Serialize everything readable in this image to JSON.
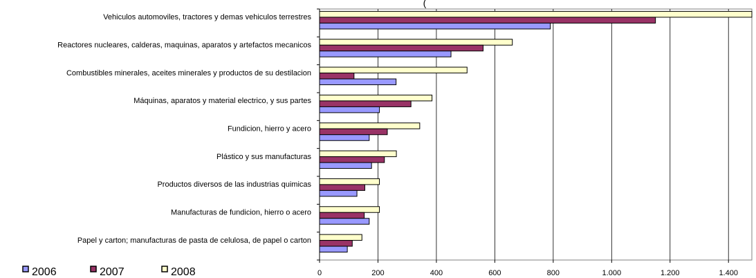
{
  "chart_data": {
    "type": "bar",
    "orientation": "horizontal",
    "title_partial": "(",
    "categories": [
      "Vehiculos automoviles, tractores y demas vehiculos terrestres",
      "Reactores nucleares, calderas, maquinas, aparatos y artefactos mecanicos",
      "Combustibles minerales, aceites minerales y productos de su destilacion",
      "Máquinas, aparatos y material electrico, y sus partes",
      "Fundicion, hierro y acero",
      "Plástico y sus manufacturas",
      "Productos diversos de las industrias quimicas",
      "Manufacturas de fundicion, hierro o acero",
      "Papel y carton; manufacturas de pasta de celulosa, de papel o carton"
    ],
    "series": [
      {
        "name": "2006",
        "color": "#9999ff",
        "values": [
          790,
          450,
          262,
          205,
          170,
          178,
          128,
          170,
          95
        ]
      },
      {
        "name": "2007",
        "color": "#993366",
        "values": [
          1150,
          560,
          118,
          313,
          232,
          222,
          155,
          153,
          112
        ]
      },
      {
        "name": "2008",
        "color": "#ffffcc",
        "values": [
          1480,
          660,
          505,
          385,
          343,
          263,
          205,
          205,
          145
        ]
      }
    ],
    "x_ticks": [
      "0",
      "200",
      "400",
      "600",
      "800",
      "1.000",
      "1.200",
      "1.400"
    ],
    "xlim": [
      0,
      1480
    ],
    "grid": "vertical",
    "legend": "bottom-left"
  }
}
